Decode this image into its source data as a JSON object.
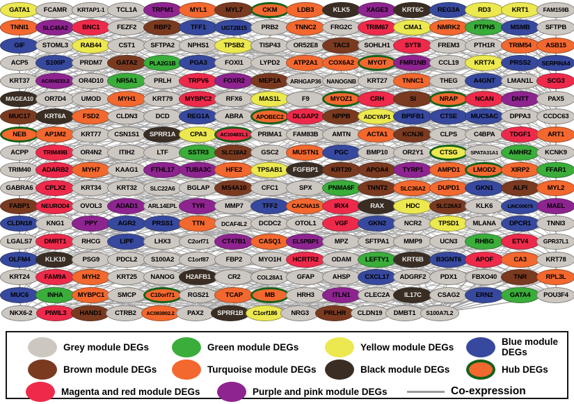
{
  "figure": {
    "type": "gene-coexpression-network",
    "edge_color": "#a0a0a0",
    "hub_ring_color": "#15611a",
    "modules": {
      "grey": {
        "label": "Grey module DEGs",
        "color": "#cdc7c2",
        "text": "#000000"
      },
      "green": {
        "label": "Green module DEGs",
        "color": "#3aad3a",
        "text": "#000000"
      },
      "yellow": {
        "label": "Yellow module DEGs",
        "color": "#ece84f",
        "text": "#000000"
      },
      "blue": {
        "label": "Blue module DEGs",
        "color": "#37499e",
        "text": "#000000"
      },
      "brown": {
        "label": "Brown module DEGs",
        "color": "#7a3a20",
        "text": "#000000"
      },
      "turquoise": {
        "label": "Turquoise  module DEGs",
        "color": "#f3682e",
        "text": "#000000"
      },
      "black": {
        "label": "Black module DEGs",
        "color": "#3a2e24",
        "text": "#e8e8e8"
      },
      "red": {
        "label": "Magenta  and red module DEGs",
        "color": "#ee2a4b",
        "text": "#000000"
      },
      "purple": {
        "label": "Purple and pink module DEGs",
        "color": "#8e2490",
        "text": "#000000"
      }
    },
    "legend": {
      "hub_label": "Hub DEGs",
      "hub_swatch_fill": "#f3682e",
      "coexpression_label": "Co-expression"
    },
    "rows": [
      [
        [
          "GATA1",
          "yellow"
        ],
        [
          "FCAMR",
          "grey"
        ],
        [
          "KRTAP1-1",
          "grey"
        ],
        [
          "TCL1A",
          "grey"
        ],
        [
          "TRPM1",
          "purple"
        ],
        [
          "MYL1",
          "turquoise"
        ],
        [
          "MYL7",
          "brown"
        ],
        [
          "CKM",
          "turquoise",
          1
        ],
        [
          "LDB3",
          "turquoise"
        ],
        [
          "KLK5",
          "black"
        ],
        [
          "XAGE3",
          "purple"
        ],
        [
          "KRT6C",
          "black"
        ],
        [
          "REG3A",
          "blue"
        ],
        [
          "RD3",
          "yellow"
        ],
        [
          "KRT1",
          "yellow"
        ],
        [
          "FAM159B",
          "grey"
        ]
      ],
      [
        [
          "TNNI1",
          "turquoise"
        ],
        [
          "SLC45A2",
          "purple"
        ],
        [
          "BNC1",
          "red"
        ],
        [
          "FEZF2",
          "grey"
        ],
        [
          "RBP2",
          "brown"
        ],
        [
          "TFF1",
          "blue"
        ],
        [
          "UGT2B15",
          "blue"
        ],
        [
          "PRB2",
          "grey"
        ],
        [
          "TNNC2",
          "turquoise"
        ],
        [
          "FRG2C",
          "grey"
        ],
        [
          "TRIM67",
          "red"
        ],
        [
          "CMA1",
          "yellow"
        ],
        [
          "NMRK2",
          "turquoise"
        ],
        [
          "PTPN5",
          "green"
        ],
        [
          "MSMB",
          "blue"
        ],
        [
          "SFTPB",
          "grey"
        ]
      ],
      [
        [
          "GIF",
          "blue"
        ],
        [
          "STOML3",
          "grey"
        ],
        [
          "RAB44",
          "yellow"
        ],
        [
          "CST1",
          "grey"
        ],
        [
          "SFTPA2",
          "grey"
        ],
        [
          "NPHS1",
          "grey"
        ],
        [
          "TPSB2",
          "yellow"
        ],
        [
          "TISP43",
          "grey"
        ],
        [
          "OR52E8",
          "grey"
        ],
        [
          "TAC3",
          "brown"
        ],
        [
          "SOHLH1",
          "grey"
        ],
        [
          "SYT8",
          "red"
        ],
        [
          "FREM3",
          "grey"
        ],
        [
          "PTH1R",
          "grey"
        ],
        [
          "TRIM54",
          "turquoise"
        ],
        [
          "ASB15",
          "turquoise"
        ]
      ],
      [
        [
          "ACP5",
          "grey"
        ],
        [
          "S100P",
          "blue"
        ],
        [
          "PRDM7",
          "grey"
        ],
        [
          "GATA2",
          "brown"
        ],
        [
          "PLA2G1B",
          "green"
        ],
        [
          "PGA3",
          "blue"
        ],
        [
          "FOXI1",
          "grey"
        ],
        [
          "LYPD2",
          "grey"
        ],
        [
          "ATP2A1",
          "turquoise"
        ],
        [
          "COX6A2",
          "turquoise"
        ],
        [
          "MYOT",
          "turquoise",
          1
        ],
        [
          "FMR1NB",
          "purple"
        ],
        [
          "CCL19",
          "grey"
        ],
        [
          "KRT74",
          "yellow"
        ],
        [
          "PRSS2",
          "blue"
        ],
        [
          "SERPINA4",
          "blue"
        ]
      ],
      [
        [
          "KRT37",
          "grey"
        ],
        [
          "AC004233.2",
          "purple"
        ],
        [
          "OR4D10",
          "grey"
        ],
        [
          "NR5A1",
          "green"
        ],
        [
          "PRLH",
          "grey"
        ],
        [
          "TRPV6",
          "red"
        ],
        [
          "FOXR2",
          "purple"
        ],
        [
          "MEP1A",
          "brown"
        ],
        [
          "ARHGAP36",
          "grey"
        ],
        [
          "NANOGNB",
          "grey"
        ],
        [
          "KRT27",
          "grey"
        ],
        [
          "TNNC1",
          "turquoise"
        ],
        [
          "THEG",
          "grey"
        ],
        [
          "A4GNT",
          "blue"
        ],
        [
          "LMAN1L",
          "grey"
        ],
        [
          "SCG3",
          "red"
        ]
      ],
      [
        [
          "MAGEA10",
          "black"
        ],
        [
          "OR7D4",
          "grey"
        ],
        [
          "UMOD",
          "grey"
        ],
        [
          "MYH1",
          "turquoise"
        ],
        [
          "KRT79",
          "grey"
        ],
        [
          "MYBPC2",
          "red"
        ],
        [
          "RFX6",
          "grey"
        ],
        [
          "MAS1L",
          "yellow"
        ],
        [
          "F9",
          "grey"
        ],
        [
          "MYOZ1",
          "turquoise",
          1
        ],
        [
          "CRH",
          "red"
        ],
        [
          "SI",
          "brown"
        ],
        [
          "NRAP",
          "turquoise",
          1
        ],
        [
          "NCAN",
          "red"
        ],
        [
          "DNTT",
          "purple"
        ],
        [
          "PAX5",
          "grey"
        ]
      ],
      [
        [
          "MUC17",
          "brown"
        ],
        [
          "KRT6A",
          "black"
        ],
        [
          "FSD2",
          "turquoise"
        ],
        [
          "CLDN3",
          "grey"
        ],
        [
          "DCD",
          "grey"
        ],
        [
          "REG1A",
          "blue"
        ],
        [
          "ABRA",
          "grey"
        ],
        [
          "APOBEC2",
          "turquoise",
          1
        ],
        [
          "DLGAP2",
          "red"
        ],
        [
          "NPPB",
          "brown"
        ],
        [
          "ADCYAP1",
          "yellow"
        ],
        [
          "BPIFB1",
          "blue"
        ],
        [
          "CTSE",
          "blue"
        ],
        [
          "MUC5AC",
          "blue"
        ],
        [
          "DPPA3",
          "grey"
        ],
        [
          "CCDC63",
          "grey"
        ]
      ],
      [
        [
          "NEB",
          "turquoise",
          1
        ],
        [
          "AP1M2",
          "turquoise"
        ],
        [
          "KRT77",
          "grey"
        ],
        [
          "CSN1S1",
          "grey"
        ],
        [
          "SPRR1A",
          "black"
        ],
        [
          "CPA3",
          "yellow"
        ],
        [
          "AC104831.1",
          "red",
          1
        ],
        [
          "PRIMA1",
          "grey"
        ],
        [
          "FAM83B",
          "grey"
        ],
        [
          "AMTN",
          "grey"
        ],
        [
          "ACTA1",
          "turquoise"
        ],
        [
          "KCNJ6",
          "brown"
        ],
        [
          "CLPS",
          "grey"
        ],
        [
          "C4BPA",
          "grey"
        ],
        [
          "TDGF1",
          "red"
        ],
        [
          "ART1",
          "turquoise"
        ]
      ],
      [
        [
          "ACPP",
          "grey"
        ],
        [
          "TRIM49B",
          "red"
        ],
        [
          "OR4N2",
          "grey"
        ],
        [
          "ITIH2",
          "grey"
        ],
        [
          "LTF",
          "grey"
        ],
        [
          "SSTR3",
          "green"
        ],
        [
          "SLC18A2",
          "brown"
        ],
        [
          "GSC2",
          "grey"
        ],
        [
          "MUSTN1",
          "turquoise"
        ],
        [
          "PGC",
          "blue"
        ],
        [
          "BMP10",
          "grey"
        ],
        [
          "OR2Y1",
          "grey"
        ],
        [
          "CTSG",
          "yellow",
          1
        ],
        [
          "SPATA31A1",
          "grey"
        ],
        [
          "AMHR2",
          "green"
        ],
        [
          "KCNK9",
          "grey"
        ]
      ],
      [
        [
          "TRIM40",
          "grey"
        ],
        [
          "ADARB2",
          "red"
        ],
        [
          "MYH7",
          "turquoise"
        ],
        [
          "KAAG1",
          "grey"
        ],
        [
          "FTHL17",
          "purple"
        ],
        [
          "TUBA3C",
          "purple"
        ],
        [
          "HFE2",
          "turquoise"
        ],
        [
          "TPSAB1",
          "yellow"
        ],
        [
          "FGFBP1",
          "black"
        ],
        [
          "KRT20",
          "brown"
        ],
        [
          "APOA4",
          "brown"
        ],
        [
          "TYRP1",
          "purple"
        ],
        [
          "AMPD1",
          "turquoise"
        ],
        [
          "LMOD2",
          "turquoise",
          1
        ],
        [
          "XIRP2",
          "turquoise"
        ],
        [
          "FFAR1",
          "green"
        ]
      ],
      [
        [
          "GABRA6",
          "grey"
        ],
        [
          "CPLX2",
          "red"
        ],
        [
          "KRT34",
          "grey"
        ],
        [
          "KRT32",
          "grey"
        ],
        [
          "SLC22A6",
          "grey"
        ],
        [
          "BGLAP",
          "grey"
        ],
        [
          "MS4A10",
          "brown"
        ],
        [
          "CFC1",
          "grey"
        ],
        [
          "SPX",
          "grey"
        ],
        [
          "PNMA6F",
          "green"
        ],
        [
          "TNNT2",
          "brown"
        ],
        [
          "SLC36A2",
          "turquoise"
        ],
        [
          "DUPD1",
          "turquoise"
        ],
        [
          "GKN1",
          "blue"
        ],
        [
          "ALPI",
          "brown"
        ],
        [
          "MYL2",
          "turquoise"
        ]
      ],
      [
        [
          "FABP1",
          "brown"
        ],
        [
          "NEUROD4",
          "red"
        ],
        [
          "OVOL3",
          "grey"
        ],
        [
          "ADAD1",
          "purple"
        ],
        [
          "ARL14EPL",
          "grey"
        ],
        [
          "TYR",
          "purple"
        ],
        [
          "MMP7",
          "grey"
        ],
        [
          "TFF2",
          "blue"
        ],
        [
          "CACNA1S",
          "turquoise"
        ],
        [
          "IRX4",
          "red"
        ],
        [
          "RAX",
          "black"
        ],
        [
          "HDC",
          "yellow"
        ],
        [
          "SLC26A3",
          "brown"
        ],
        [
          "KLK6",
          "grey"
        ],
        [
          "LINC00675",
          "blue"
        ],
        [
          "MAEL",
          "purple"
        ]
      ],
      [
        [
          "CLDN18",
          "blue"
        ],
        [
          "KNG1",
          "grey"
        ],
        [
          "PPY",
          "purple"
        ],
        [
          "AGR2",
          "blue"
        ],
        [
          "PRSS1",
          "blue"
        ],
        [
          "TTN",
          "turquoise"
        ],
        [
          "DCAF4L2",
          "grey"
        ],
        [
          "DCDC2",
          "grey"
        ],
        [
          "OTOL1",
          "grey"
        ],
        [
          "VGF",
          "red"
        ],
        [
          "GKN2",
          "blue"
        ],
        [
          "NCR2",
          "grey"
        ],
        [
          "TPSD1",
          "yellow"
        ],
        [
          "MLANA",
          "grey"
        ],
        [
          "DPCR1",
          "blue"
        ],
        [
          "TNNI3",
          "grey"
        ]
      ],
      [
        [
          "LGALS7",
          "grey"
        ],
        [
          "DMRT1",
          "red"
        ],
        [
          "RHCG",
          "grey"
        ],
        [
          "LIPF",
          "blue"
        ],
        [
          "LHX3",
          "grey"
        ],
        [
          "C2orf71",
          "grey"
        ],
        [
          "CT47B1",
          "purple"
        ],
        [
          "CASQ1",
          "turquoise"
        ],
        [
          "ELSPBP1",
          "purple"
        ],
        [
          "MPZ",
          "grey"
        ],
        [
          "SFTPA1",
          "grey"
        ],
        [
          "MMP9",
          "grey"
        ],
        [
          "UCN3",
          "grey"
        ],
        [
          "RHBG",
          "green"
        ],
        [
          "ETV4",
          "red"
        ],
        [
          "GPR37L1",
          "grey"
        ]
      ],
      [
        [
          "OLFM4",
          "blue"
        ],
        [
          "KLK10",
          "black"
        ],
        [
          "PSG9",
          "grey"
        ],
        [
          "PDCL2",
          "grey"
        ],
        [
          "S100A2",
          "grey"
        ],
        [
          "C1orf87",
          "grey"
        ],
        [
          "FBP2",
          "grey"
        ],
        [
          "MYO1H",
          "grey"
        ],
        [
          "HCRTR2",
          "red"
        ],
        [
          "ODAM",
          "grey"
        ],
        [
          "LEFTY1",
          "green"
        ],
        [
          "KRT6B",
          "black"
        ],
        [
          "B3GNT6",
          "blue"
        ],
        [
          "APOF",
          "red"
        ],
        [
          "CA3",
          "turquoise"
        ],
        [
          "KRT78",
          "grey"
        ]
      ],
      [
        [
          "KRT24",
          "grey"
        ],
        [
          "FAM9A",
          "red"
        ],
        [
          "MYH2",
          "turquoise"
        ],
        [
          "KRT25",
          "grey"
        ],
        [
          "NANOG",
          "grey"
        ],
        [
          "H2AFB1",
          "black"
        ],
        [
          "CR2",
          "grey"
        ],
        [
          "COL28A1",
          "grey"
        ],
        [
          "GFAP",
          "grey"
        ],
        [
          "AHSP",
          "grey"
        ],
        [
          "CXCL17",
          "blue"
        ],
        [
          "ADGRF2",
          "grey"
        ],
        [
          "PDX1",
          "grey"
        ],
        [
          "FBXO40",
          "grey"
        ],
        [
          "TNR",
          "brown"
        ],
        [
          "RPL3L",
          "turquoise"
        ]
      ],
      [
        [
          "MUC6",
          "blue"
        ],
        [
          "INHA",
          "green"
        ],
        [
          "MYBPC1",
          "turquoise"
        ],
        [
          "SMCP",
          "grey"
        ],
        [
          "C10orf71",
          "turquoise",
          1
        ],
        [
          "RGS21",
          "grey"
        ],
        [
          "TCAP",
          "turquoise"
        ],
        [
          "MB",
          "turquoise",
          1
        ],
        [
          "HRH3",
          "grey"
        ],
        [
          "ITLN1",
          "purple"
        ],
        [
          "CLEC2A",
          "grey"
        ],
        [
          "IL17C",
          "black"
        ],
        [
          "CSAG2",
          "grey"
        ],
        [
          "ERN2",
          "blue"
        ],
        [
          "GATA4",
          "green"
        ],
        [
          "POU3F4",
          "grey"
        ]
      ],
      [
        [
          "NKX6-2",
          "grey"
        ],
        [
          "PIWIL3",
          "red"
        ],
        [
          "HAND1",
          "brown"
        ],
        [
          "CTRB2",
          "grey"
        ],
        [
          "AC083902.2",
          "turquoise"
        ],
        [
          "PAX2",
          "grey"
        ],
        [
          "SPRR1B",
          "black"
        ],
        [
          "C1orf186",
          "yellow"
        ],
        [
          "NRG3",
          "grey"
        ],
        [
          "PRLHR",
          "brown"
        ],
        [
          "CLDN19",
          "grey"
        ],
        [
          "DMBT1",
          "grey"
        ],
        [
          "S100A7L2",
          "grey"
        ]
      ]
    ]
  }
}
